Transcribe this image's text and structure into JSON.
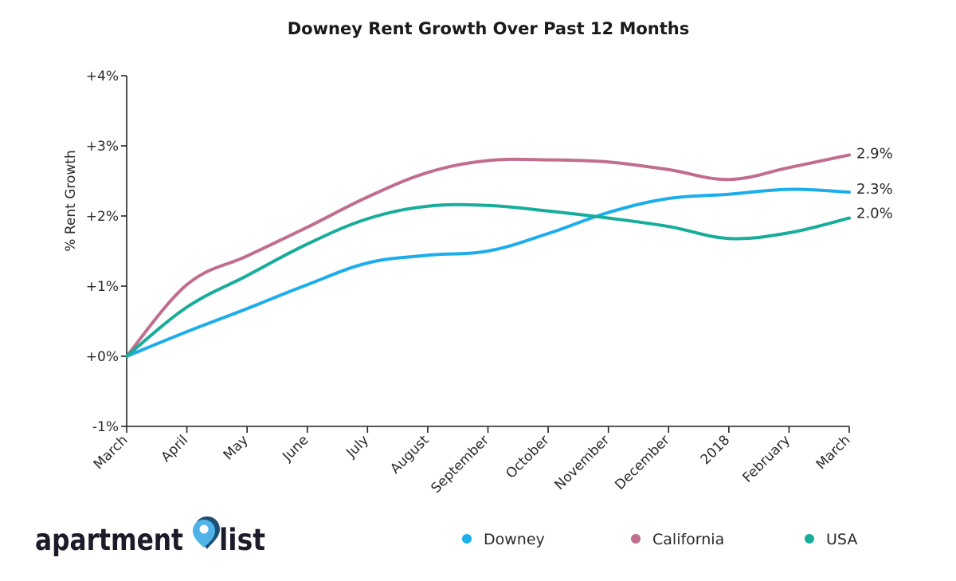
{
  "brand": {
    "name_part1": "apartment",
    "name_part2": "list",
    "logo_color_light": "#4fb3e8",
    "logo_color_dark": "#1c4f73"
  },
  "chart_data": {
    "type": "line",
    "title": "Downey Rent Growth Over Past 12 Months",
    "xlabel": "",
    "ylabel": "% Rent Growth",
    "ylim": [
      -1,
      4
    ],
    "yticks": [
      -1,
      0,
      1,
      2,
      3,
      4
    ],
    "ytick_labels": [
      "-1%",
      "+0%",
      "+1%",
      "+2%",
      "+3%",
      "+4%"
    ],
    "categories": [
      "March",
      "April",
      "May",
      "June",
      "July",
      "August",
      "September",
      "October",
      "November",
      "December",
      "2018",
      "February",
      "March"
    ],
    "series": [
      {
        "name": "Downey",
        "color": "#1cadec",
        "values": [
          0.0,
          0.35,
          0.68,
          1.02,
          1.33,
          1.44,
          1.5,
          1.75,
          2.05,
          2.25,
          2.31,
          2.38,
          2.34
        ],
        "end_label": "2.3%"
      },
      {
        "name": "California",
        "color": "#c06d8f",
        "values": [
          0.0,
          1.02,
          1.43,
          1.84,
          2.27,
          2.62,
          2.79,
          2.8,
          2.77,
          2.66,
          2.52,
          2.69,
          2.87
        ],
        "end_label": "2.9%"
      },
      {
        "name": "USA",
        "color": "#18ad9a",
        "values": [
          0.0,
          0.7,
          1.15,
          1.6,
          1.96,
          2.14,
          2.15,
          2.07,
          1.97,
          1.85,
          1.68,
          1.76,
          1.97
        ],
        "end_label": "2.0%"
      }
    ],
    "legend": {
      "position": "bottom-right",
      "entries": [
        "Downey",
        "California",
        "USA"
      ]
    },
    "grid": false
  }
}
